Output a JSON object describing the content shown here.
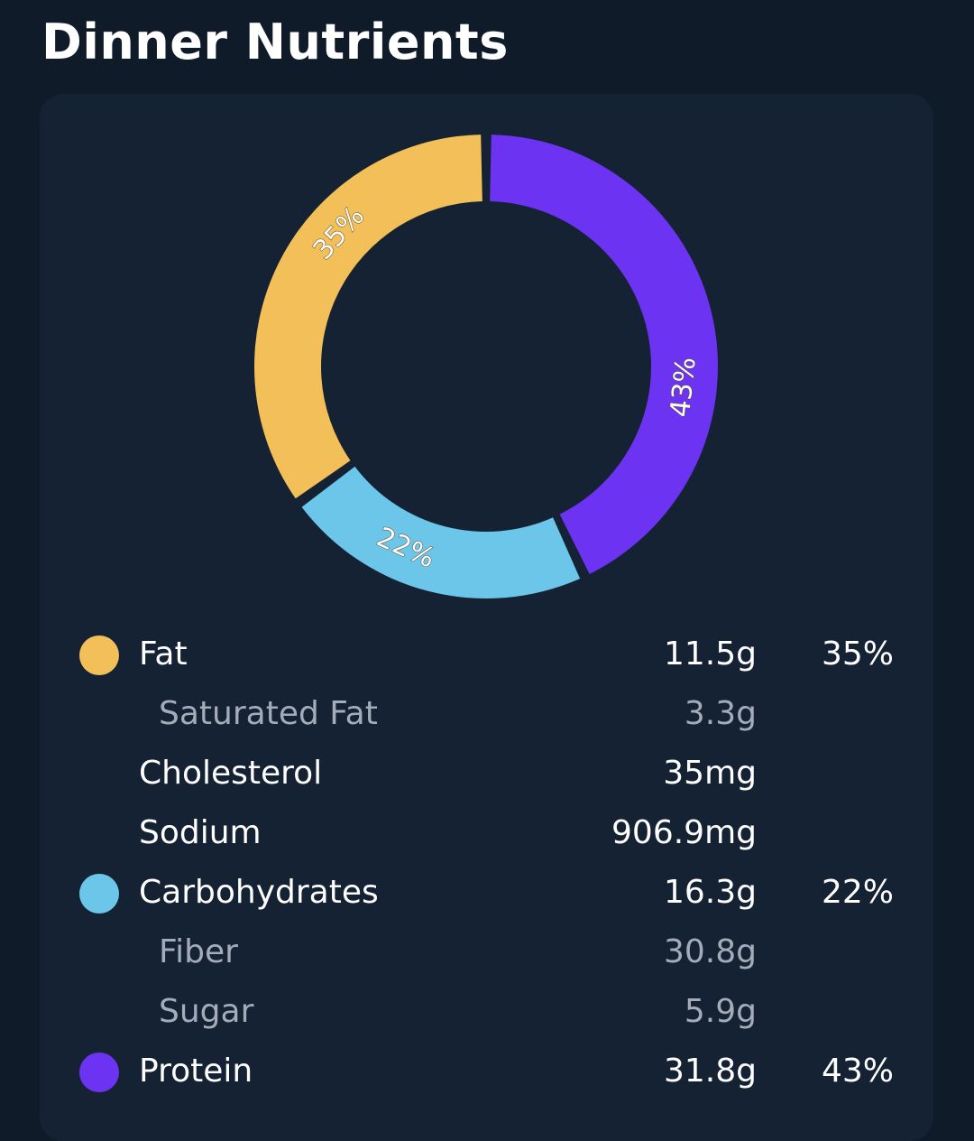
{
  "title": "Dinner Nutrients",
  "colors": {
    "fat": "#f2bf58",
    "carbohydrates": "#6cc6ea",
    "protein": "#6d33f2",
    "background": "#0f1b29",
    "card": "#152233"
  },
  "chart_data": {
    "type": "pie",
    "style": "donut",
    "slices": [
      {
        "name": "Protein",
        "value": 43,
        "label": "43%",
        "color": "#6d33f2"
      },
      {
        "name": "Carbohydrates",
        "value": 22,
        "label": "22%",
        "color": "#6cc6ea"
      },
      {
        "name": "Fat",
        "value": 35,
        "label": "35%",
        "color": "#f2bf58"
      }
    ]
  },
  "nutrients": [
    {
      "name": "Fat",
      "amount": "11.5g",
      "percent": "35%",
      "dot_color": "#f2bf58"
    },
    {
      "name": "Saturated Fat",
      "amount": "3.3g",
      "percent": ""
    },
    {
      "name": "Cholesterol",
      "amount": "35mg",
      "percent": ""
    },
    {
      "name": "Sodium",
      "amount": "906.9mg",
      "percent": ""
    },
    {
      "name": "Carbohydrates",
      "amount": "16.3g",
      "percent": "22%",
      "dot_color": "#6cc6ea"
    },
    {
      "name": "Fiber",
      "amount": "30.8g",
      "percent": ""
    },
    {
      "name": "Sugar",
      "amount": "5.9g",
      "percent": ""
    },
    {
      "name": "Protein",
      "amount": "31.8g",
      "percent": "43%",
      "dot_color": "#6d33f2"
    }
  ]
}
